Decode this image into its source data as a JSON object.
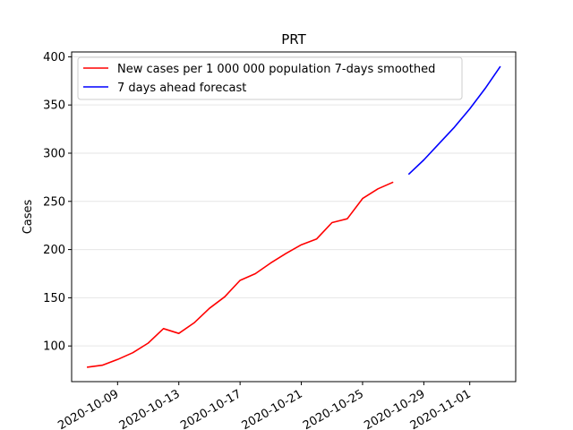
{
  "chart_data": {
    "type": "line",
    "title": "PRT",
    "xlabel": "",
    "ylabel": "Cases",
    "ylim": [
      63,
      405
    ],
    "xlim": [
      "2020-10-06",
      "2020-11-04"
    ],
    "yticks": [
      100,
      150,
      200,
      250,
      300,
      350,
      400
    ],
    "xticks": [
      "2020-10-09",
      "2020-10-13",
      "2020-10-17",
      "2020-10-21",
      "2020-10-25",
      "2020-10-29",
      "2020-11-01"
    ],
    "grid": "horizontal",
    "legend_position": "top-left",
    "series": [
      {
        "name": "New cases per 1 000 000 population 7-days smoothed",
        "color": "#ff0000",
        "points": [
          [
            "2020-10-07",
            78
          ],
          [
            "2020-10-08",
            80
          ],
          [
            "2020-10-09",
            86
          ],
          [
            "2020-10-10",
            93
          ],
          [
            "2020-10-11",
            103
          ],
          [
            "2020-10-12",
            118
          ],
          [
            "2020-10-13",
            113
          ],
          [
            "2020-10-14",
            124
          ],
          [
            "2020-10-15",
            139
          ],
          [
            "2020-10-16",
            151
          ],
          [
            "2020-10-17",
            168
          ],
          [
            "2020-10-18",
            175
          ],
          [
            "2020-10-19",
            186
          ],
          [
            "2020-10-20",
            196
          ],
          [
            "2020-10-21",
            205
          ],
          [
            "2020-10-22",
            211
          ],
          [
            "2020-10-23",
            228
          ],
          [
            "2020-10-24",
            232
          ],
          [
            "2020-10-25",
            253
          ],
          [
            "2020-10-26",
            263
          ],
          [
            "2020-10-27",
            270
          ]
        ]
      },
      {
        "name": "7 days ahead forecast",
        "color": "#0000ff",
        "points": [
          [
            "2020-10-28",
            278
          ],
          [
            "2020-10-29",
            293
          ],
          [
            "2020-10-30",
            310
          ],
          [
            "2020-10-31",
            327
          ],
          [
            "2020-11-01",
            346
          ],
          [
            "2020-11-02",
            367
          ],
          [
            "2020-11-03",
            390
          ]
        ]
      }
    ]
  }
}
